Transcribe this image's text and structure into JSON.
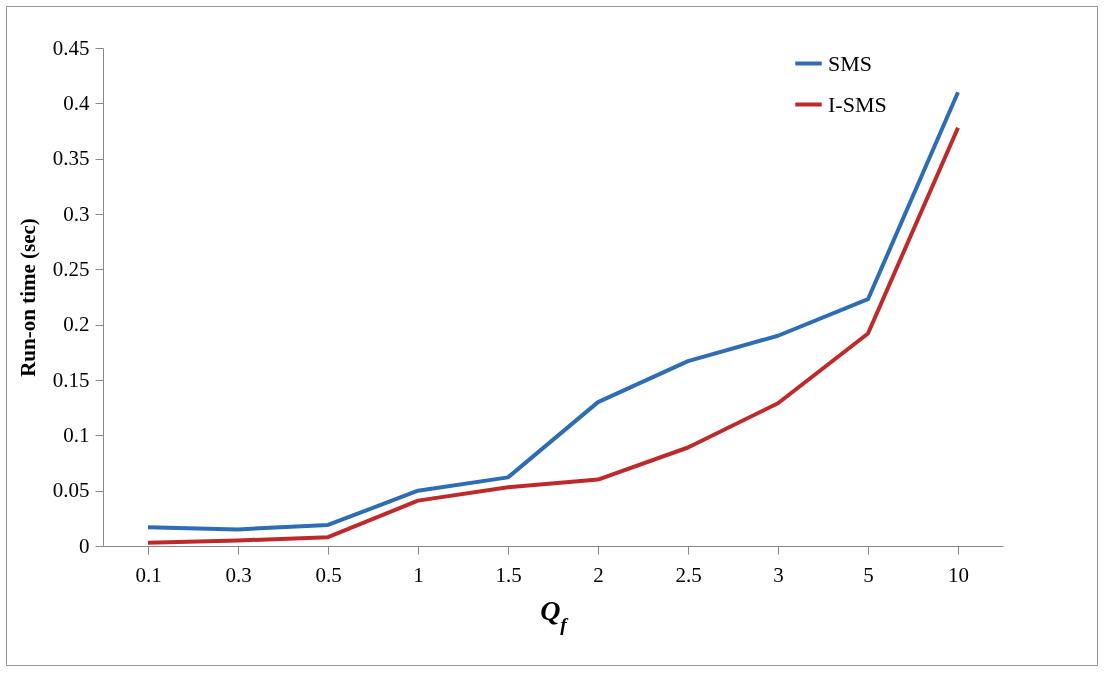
{
  "chart_data": {
    "type": "line",
    "xlabel": "Q$_{f}$",
    "ylabel": "Run-on time (sec)",
    "categories": [
      "0.1",
      "0.3",
      "0.5",
      "1",
      "1.5",
      "2",
      "2.5",
      "3",
      "5",
      "10"
    ],
    "series": [
      {
        "name": "SMS",
        "color": "#2e6db4",
        "values": [
          0.017,
          0.015,
          0.019,
          0.05,
          0.062,
          0.13,
          0.167,
          0.19,
          0.223,
          0.41
        ]
      },
      {
        "name": "I-SMS",
        "color": "#be2a2a",
        "values": [
          0.003,
          0.005,
          0.008,
          0.041,
          0.053,
          0.06,
          0.089,
          0.129,
          0.192,
          0.378
        ]
      }
    ],
    "ylim": [
      0,
      0.45
    ],
    "yticks": [
      0,
      0.05,
      0.1,
      0.15,
      0.2,
      0.25,
      0.3,
      0.35,
      0.4,
      0.45
    ],
    "grid": false,
    "legend": "top right",
    "marker": "none",
    "line_style": "solid"
  }
}
